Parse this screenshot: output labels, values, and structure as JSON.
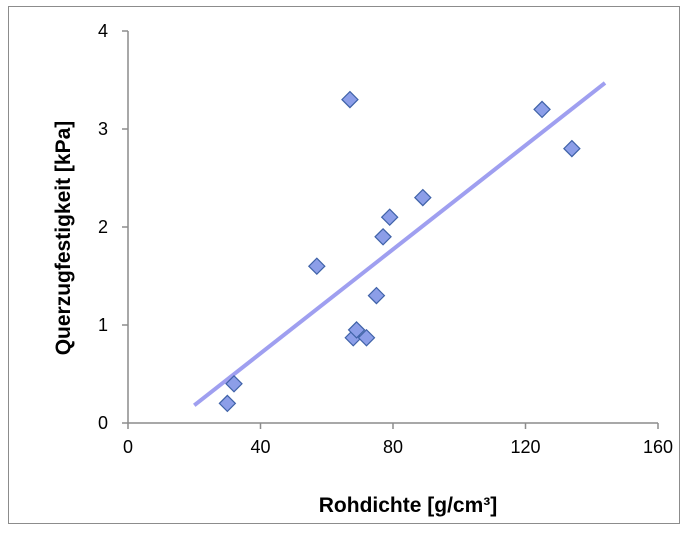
{
  "chart_data": {
    "type": "scatter",
    "xlabel": "Rohdichte [g/cm³]",
    "ylabel": "Querzugfestigkeit [kPa]",
    "xlim": [
      0,
      160
    ],
    "ylim": [
      0,
      4
    ],
    "x_ticks": [
      "0",
      "40",
      "80",
      "120",
      "160"
    ],
    "y_ticks": [
      "0",
      "1",
      "2",
      "3",
      "4"
    ],
    "grid": false,
    "legend": "none",
    "series": [
      {
        "marker": "diamond",
        "color": "#8c9ee8",
        "edge_color": "#3f62a8",
        "points": [
          {
            "x": 30,
            "y": 0.2
          },
          {
            "x": 32,
            "y": 0.4
          },
          {
            "x": 57,
            "y": 1.6
          },
          {
            "x": 67,
            "y": 3.3
          },
          {
            "x": 68,
            "y": 0.87
          },
          {
            "x": 69,
            "y": 0.95
          },
          {
            "x": 72,
            "y": 0.87
          },
          {
            "x": 75,
            "y": 1.3
          },
          {
            "x": 77,
            "y": 1.9
          },
          {
            "x": 79,
            "y": 2.1
          },
          {
            "x": 89,
            "y": 2.3
          },
          {
            "x": 125,
            "y": 3.2
          },
          {
            "x": 134,
            "y": 2.8
          }
        ]
      }
    ],
    "trendline": {
      "type": "linear",
      "color": "#9f9ff0",
      "x": [
        20,
        144
      ],
      "y": [
        0.18,
        3.47
      ]
    }
  }
}
